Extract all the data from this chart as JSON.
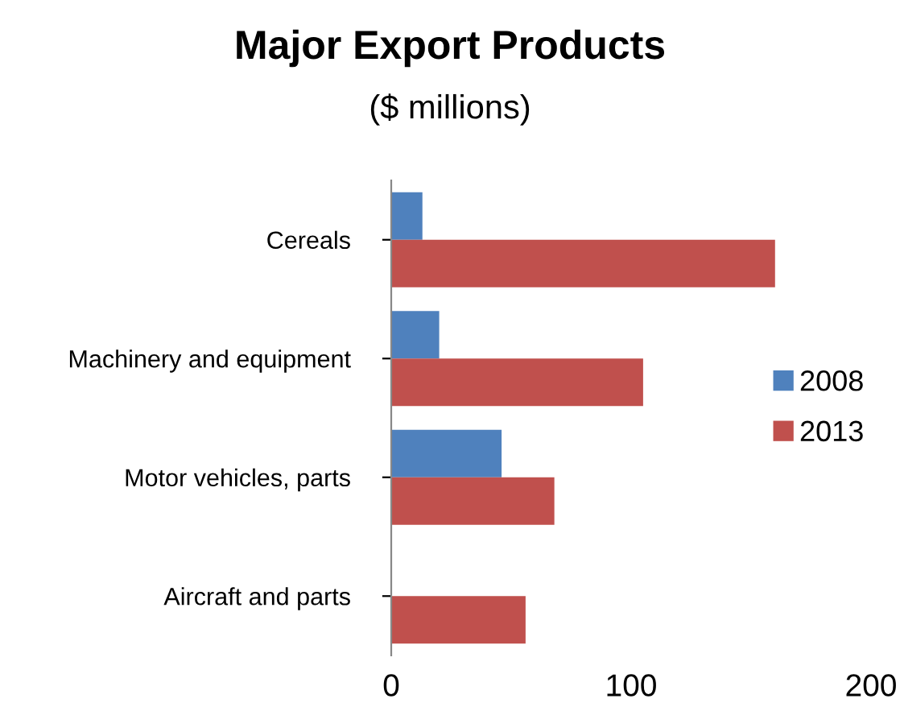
{
  "chart_data": {
    "type": "bar",
    "orientation": "horizontal",
    "title": "Major Export Products",
    "subtitle": "($ millions)",
    "categories": [
      "Cereals",
      "Machinery and equipment",
      "Motor vehicles, parts",
      "Aircraft and parts"
    ],
    "series": [
      {
        "name": "2008",
        "color": "#4f81bd",
        "values": [
          13,
          20,
          46,
          0
        ]
      },
      {
        "name": "2013",
        "color": "#c0504d",
        "values": [
          160,
          105,
          68,
          56
        ]
      }
    ],
    "xlim": [
      0,
      200
    ],
    "xticks": [
      0,
      100,
      200
    ],
    "grid": false,
    "legend": "right"
  }
}
